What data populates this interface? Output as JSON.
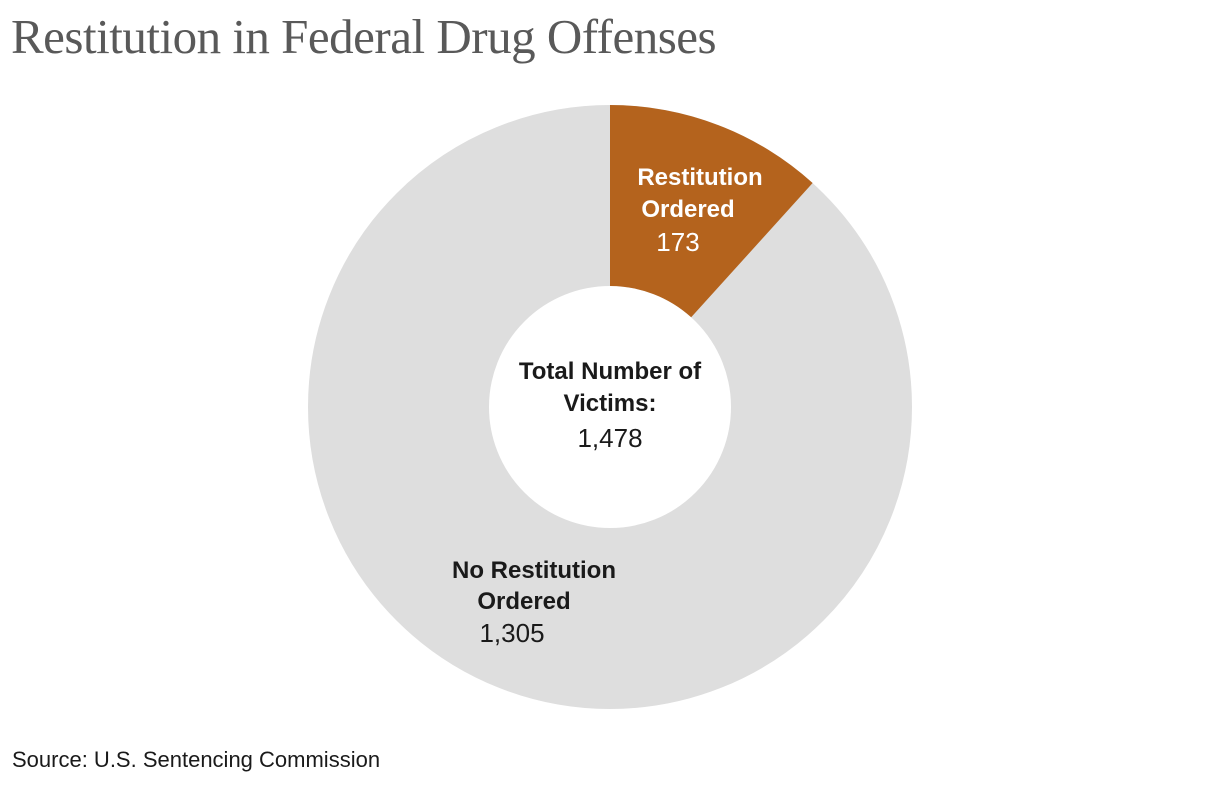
{
  "page": {
    "title": "Restitution in Federal Drug Offenses",
    "source": "Source: U.S. Sentencing Commission",
    "background_color": "#FFFFFF",
    "title_color": "#595959"
  },
  "chart_data": {
    "type": "pie",
    "subtype": "donut",
    "title": "Restitution in Federal Drug Offenses",
    "categories": [
      "Restitution Ordered",
      "No Restitution Ordered"
    ],
    "values": [
      173,
      1305
    ],
    "total": 1478,
    "colors": [
      "#B4631D",
      "#DEDEDE"
    ],
    "center_label": "Total Number of Victims:",
    "center_value": "1,478",
    "start_angle_deg": 0,
    "direction": "clockwise",
    "inner_radius_ratio": 0.4,
    "legend_position": "none",
    "labels_on_slices": true,
    "source": "Source: U.S. Sentencing Commission"
  },
  "slice_labels": {
    "restitution": {
      "line1": "Restitution",
      "line2": "Ordered",
      "value": "173"
    },
    "no_restitution": {
      "line1": "No Restitution",
      "line2": "Ordered",
      "value": "1,305"
    },
    "center": {
      "line1": "Total Number of",
      "line2": "Victims:",
      "value": "1,478"
    }
  }
}
